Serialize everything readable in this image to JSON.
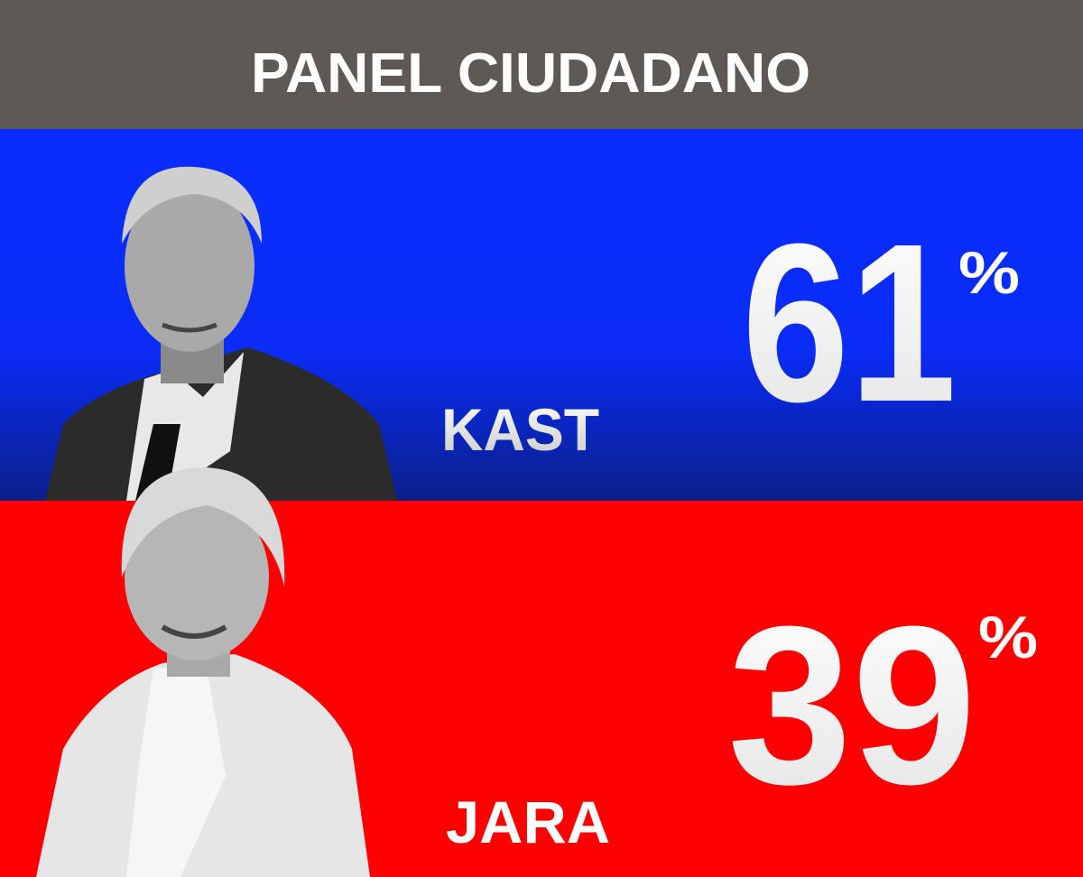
{
  "header": {
    "title": "PANEL CIUDADANO"
  },
  "candidates": [
    {
      "name": "KAST",
      "value": 61,
      "unit": "%"
    },
    {
      "name": "JARA",
      "value": 39,
      "unit": "%"
    }
  ]
}
